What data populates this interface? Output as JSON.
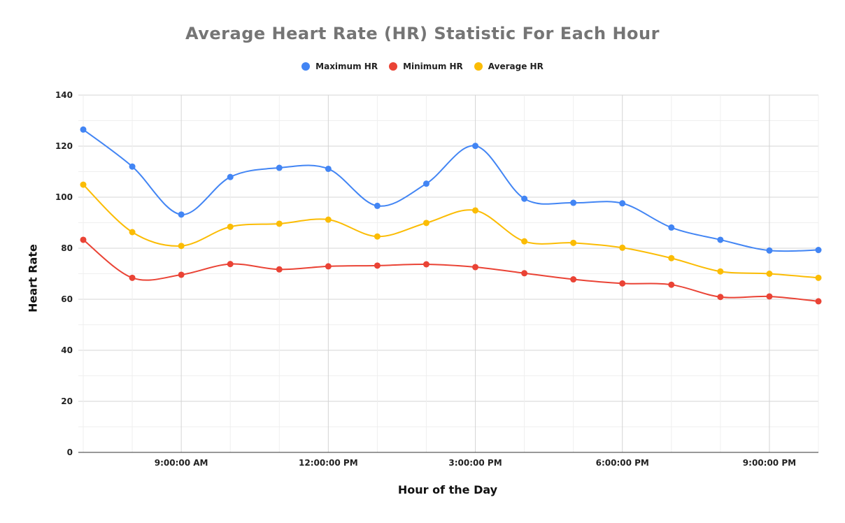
{
  "chart_data": {
    "type": "line",
    "title": "Average Heart Rate (HR) Statistic For Each Hour",
    "xlabel": "Hour of the Day",
    "ylabel": "Heart Rate",
    "ylim": [
      0,
      140
    ],
    "yticks": [
      0,
      20,
      40,
      60,
      80,
      100,
      120,
      140
    ],
    "x_hours": [
      7,
      8,
      9,
      10,
      11,
      12,
      13,
      14,
      15,
      16,
      17,
      18,
      19,
      20,
      21,
      22
    ],
    "xlim": [
      6.9,
      22.0
    ],
    "x_tick_hours": [
      9,
      12,
      15,
      18,
      21
    ],
    "x_tick_labels": [
      "9:00:00 AM",
      "12:00:00 PM",
      "3:00:00 PM",
      "6:00:00 PM",
      "9:00:00 PM"
    ],
    "grid": true,
    "legend_position": "top",
    "series": [
      {
        "name": "Maximum HR",
        "color": "#4285F4",
        "values": [
          126.5,
          112,
          93.2,
          107.9,
          111.5,
          111.1,
          96.6,
          105.3,
          120.1,
          99.4,
          97.8,
          97.6,
          88.1,
          83.3,
          79.1,
          79.3
        ]
      },
      {
        "name": "Minimum HR",
        "color": "#EA4335",
        "values": [
          83.3,
          68.4,
          69.6,
          73.8,
          71.7,
          72.9,
          73.2,
          73.7,
          72.6,
          70.2,
          67.8,
          66.2,
          65.7,
          60.9,
          61.1,
          59.2
        ]
      },
      {
        "name": "Average HR",
        "color": "#FBBC04",
        "values": [
          104.9,
          86.3,
          80.9,
          88.4,
          89.6,
          91.2,
          84.6,
          89.9,
          94.8,
          82.7,
          82.1,
          80.2,
          76.1,
          70.9,
          70.0,
          68.4
        ]
      }
    ]
  }
}
